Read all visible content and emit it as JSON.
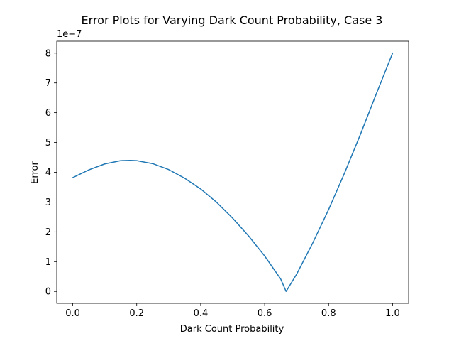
{
  "chart_data": {
    "type": "line",
    "title": "Error Plots for Varying Dark Count Probability, Case 3",
    "xlabel": "Dark Count Probability",
    "ylabel": "Error",
    "y_offset_label": "1e−7",
    "xlim": [
      -0.05,
      1.05
    ],
    "ylim": [
      -0.4,
      8.4
    ],
    "y_scale_note": "values in units of 1e-7",
    "xticks": [
      0.0,
      0.2,
      0.4,
      0.6,
      0.8,
      1.0
    ],
    "xtick_labels": [
      "0.0",
      "0.2",
      "0.4",
      "0.6",
      "0.8",
      "1.0"
    ],
    "yticks": [
      0,
      1,
      2,
      3,
      4,
      5,
      6,
      7,
      8
    ],
    "ytick_labels": [
      "0",
      "1",
      "2",
      "3",
      "4",
      "5",
      "6",
      "7",
      "8"
    ],
    "grid": false,
    "series": [
      {
        "color": "#1f77b4",
        "x": [
          0.0,
          0.05,
          0.1,
          0.15,
          0.18,
          0.2,
          0.25,
          0.3,
          0.35,
          0.4,
          0.45,
          0.5,
          0.55,
          0.6,
          0.65,
          0.667,
          0.7,
          0.75,
          0.8,
          0.85,
          0.9,
          0.95,
          1.0
        ],
        "y": [
          3.82,
          4.08,
          4.28,
          4.39,
          4.4,
          4.39,
          4.29,
          4.09,
          3.8,
          3.44,
          2.99,
          2.46,
          1.86,
          1.19,
          0.42,
          0.0,
          0.58,
          1.62,
          2.75,
          3.98,
          5.29,
          6.66,
          8.0
        ]
      }
    ]
  }
}
